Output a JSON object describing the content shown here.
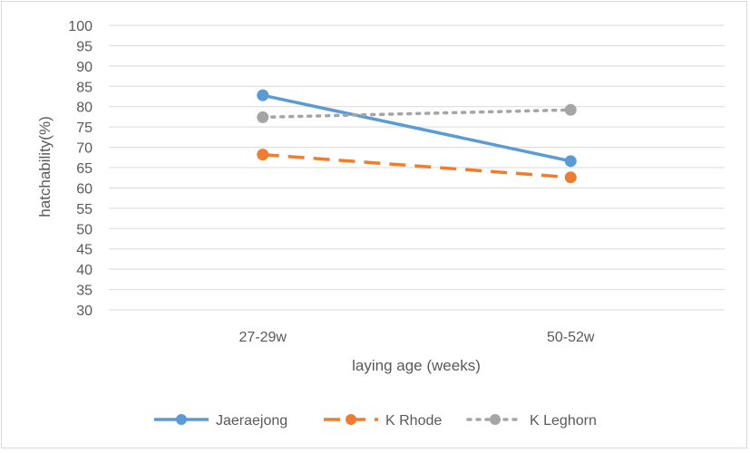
{
  "chart_data": {
    "type": "line",
    "title": "",
    "xlabel": "laying age (weeks)",
    "ylabel": "hatchability(%)",
    "ylim": [
      30,
      100
    ],
    "ytick_step": 5,
    "categories": [
      "27-29w",
      "50-52w"
    ],
    "grid": "horizontal",
    "legend_position": "bottom",
    "series": [
      {
        "name": "Jaeraejong",
        "values": [
          82.8,
          66.6
        ],
        "color": "#5b9bd5",
        "dash": "solid"
      },
      {
        "name": "K Rhode",
        "values": [
          68.2,
          62.6
        ],
        "color": "#ed7d31",
        "dash": "dash"
      },
      {
        "name": "K Leghorn",
        "values": [
          77.4,
          79.2
        ],
        "color": "#a5a5a5",
        "dash": "dot"
      }
    ]
  }
}
